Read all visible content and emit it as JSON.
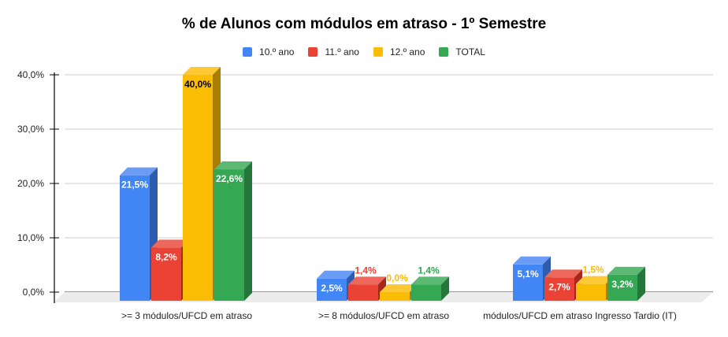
{
  "chart_data": {
    "type": "bar",
    "title": "% de Alunos com módulos em atraso - 1º Semestre",
    "xlabel": "",
    "ylabel": "",
    "ylim": [
      0,
      40
    ],
    "yticks": [
      "0,0%",
      "10,0%",
      "20,0%",
      "30,0%",
      "40,0%"
    ],
    "grid": true,
    "legend_position": "top",
    "categories": [
      ">= 3 módulos/UFCD em atraso",
      ">= 8 módulos/UFCD em atraso",
      "módulos/UFCD em atraso Ingresso Tardio (IT)"
    ],
    "series": [
      {
        "name": "10.º ano",
        "color": "#4285f4",
        "values": [
          21.5,
          2.5,
          5.1
        ],
        "labels": [
          "21,5%",
          "2,5%",
          "5,1%"
        ]
      },
      {
        "name": "11.º ano",
        "color": "#ea4335",
        "values": [
          8.2,
          1.4,
          2.7
        ],
        "labels": [
          "8,2%",
          "1,4%",
          "2,7%"
        ]
      },
      {
        "name": "12.º ano",
        "color": "#fbbc04",
        "values": [
          40.0,
          0.0,
          1.5
        ],
        "labels": [
          "40,0%",
          "0,0%",
          "1,5%"
        ]
      },
      {
        "name": "TOTAL",
        "color": "#34a853",
        "values": [
          22.6,
          1.4,
          3.2
        ],
        "labels": [
          "22,6%",
          "1,4%",
          "3,2%"
        ]
      }
    ]
  }
}
